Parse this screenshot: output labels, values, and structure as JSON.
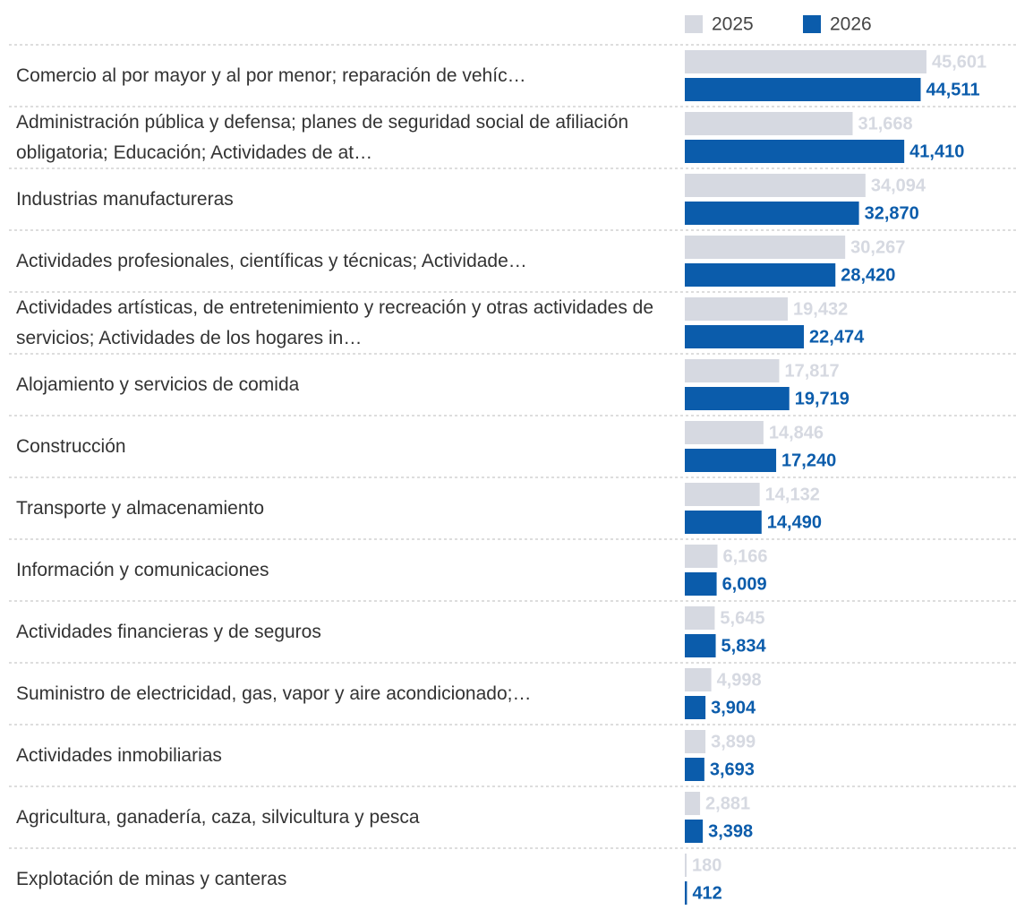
{
  "chart_data": {
    "type": "hbar",
    "categories": [
      "Comercio al por mayor y al por menor; reparación de vehíc…",
      "Administración pública y defensa; planes de seguridad social de afiliación obligatoria; Educación; Actividades de at…",
      "Industrias manufactureras",
      "Actividades profesionales, científicas y técnicas; Actividade…",
      "Actividades artísticas, de entretenimiento y recreación y otras actividades de servicios; Actividades de los hogares in…",
      "Alojamiento y servicios de comida",
      "Construcción",
      "Transporte y almacenamiento",
      "Información y comunicaciones",
      "Actividades financieras y de seguros",
      "Suministro de electricidad, gas, vapor y aire acondicionado;…",
      "Actividades inmobiliarias",
      "Agricultura, ganadería, caza, silvicultura y pesca",
      "Explotación de minas y canteras"
    ],
    "series": [
      {
        "name": "2025",
        "color": "#d6d9e1",
        "values": [
          45601,
          31668,
          34094,
          30267,
          19432,
          17817,
          14846,
          14132,
          6166,
          5645,
          4998,
          3899,
          2881,
          180
        ],
        "value_labels": [
          "45,601",
          "31,668",
          "34,094",
          "30,267",
          "19,432",
          "17,817",
          "14,846",
          "14,132",
          "6,166",
          "5,645",
          "4,998",
          "3,899",
          "2,881",
          "180"
        ]
      },
      {
        "name": "2026",
        "color": "#0b5cab",
        "values": [
          44511,
          41410,
          32870,
          28420,
          22474,
          19719,
          17240,
          14490,
          6009,
          5834,
          3904,
          3693,
          3398,
          412
        ],
        "value_labels": [
          "44,511",
          "41,410",
          "32,870",
          "28,420",
          "22,474",
          "19,719",
          "17,240",
          "14,490",
          "6,009",
          "5,834",
          "3,904",
          "3,693",
          "3,398",
          "412"
        ]
      }
    ],
    "xlim": [
      0,
      62500
    ],
    "legend": "top-right"
  }
}
